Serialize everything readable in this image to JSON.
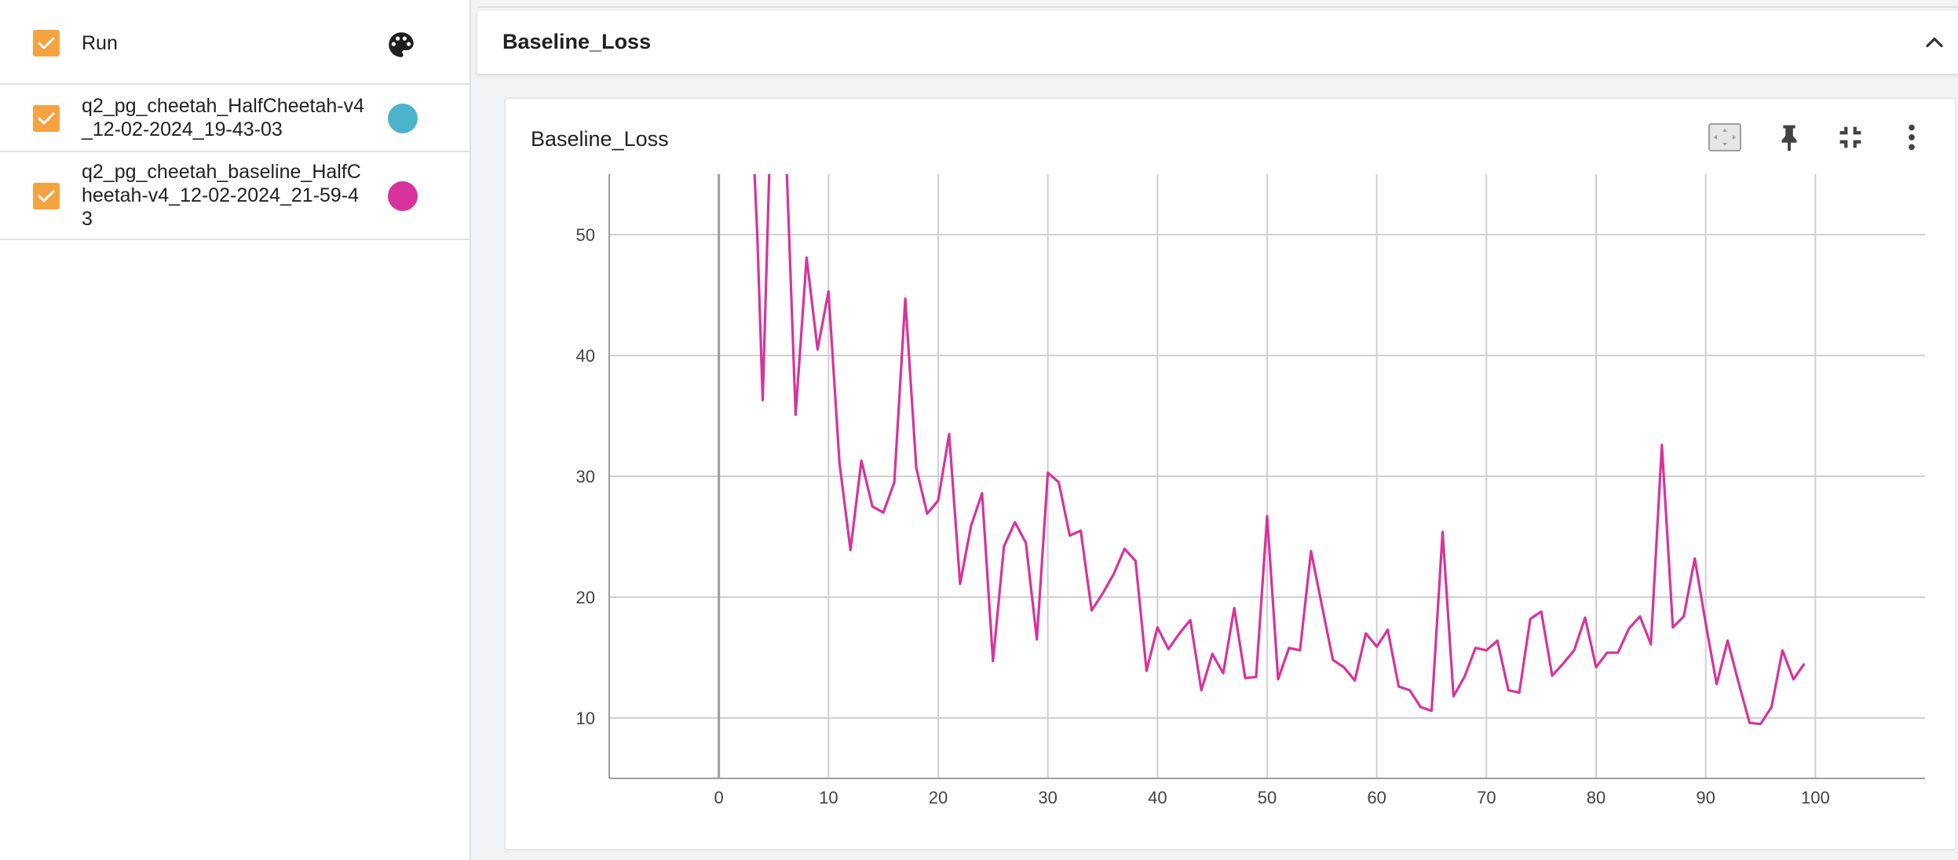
{
  "runs_panel": {
    "header_label": "Run",
    "runs": [
      {
        "name": "q2_pg_cheetah_HalfCheetah-v4_12-02-2024_19-43-03",
        "color": "#4db3cc",
        "checked": true
      },
      {
        "name": "q2_pg_cheetah_baseline_HalfCheetah-v4_12-02-2024_21-59-43",
        "color": "#d6349a",
        "checked": true
      }
    ],
    "icons": {
      "header": "palette-icon",
      "checkbox": "check-icon"
    }
  },
  "group": {
    "title": "Baseline_Loss",
    "collapse_icon": "chevron-up-icon"
  },
  "card": {
    "title": "Baseline_Loss",
    "toolbar_icons": [
      "fit-domain-icon",
      "pin-icon",
      "collapse-fullscreen-icon",
      "more-vert-icon"
    ]
  },
  "colors": {
    "accent_checkbox": "#f5a242",
    "series": "#d6349a",
    "grid": "#d0d0d0",
    "axis_text": "#424242"
  },
  "chart_data": {
    "type": "line",
    "title": "",
    "xlabel": "",
    "ylabel": "",
    "xlim": [
      -10,
      110
    ],
    "ylim": [
      5,
      55
    ],
    "x_ticks": [
      0,
      10,
      20,
      30,
      40,
      50,
      60,
      70,
      80,
      90,
      100
    ],
    "y_ticks": [
      10,
      20,
      30,
      40,
      50
    ],
    "grid": true,
    "series": [
      {
        "name": "q2_pg_cheetah_baseline_HalfCheetah-v4_12-02-2024_21-59-43",
        "color": "#d6349a",
        "x": [
          3,
          3.5,
          4,
          5,
          6,
          7,
          8,
          9,
          10,
          11,
          12,
          13,
          14,
          15,
          16,
          17,
          18,
          19,
          20,
          21,
          22,
          23,
          24,
          25,
          26,
          27,
          28,
          29,
          30,
          31,
          32,
          33,
          34,
          35,
          36,
          37,
          38,
          39,
          40,
          41,
          42,
          43,
          44,
          45,
          46,
          47,
          48,
          49,
          50,
          51,
          52,
          53,
          54,
          55,
          56,
          57,
          58,
          59,
          60,
          61,
          62,
          63,
          64,
          65,
          66,
          67,
          68,
          69,
          70,
          71,
          72,
          73,
          74,
          75,
          76,
          77,
          78,
          79,
          80,
          81,
          82,
          83,
          84,
          85,
          86,
          87,
          88,
          89,
          90,
          91,
          92,
          93,
          94,
          95,
          96,
          97,
          98,
          99
        ],
        "values": [
          60,
          50,
          36.3,
          68,
          60,
          35.1,
          48.1,
          40.5,
          45.3,
          31.1,
          23.9,
          31.3,
          27.5,
          27,
          29.5,
          44.7,
          30.7,
          26.9,
          28,
          33.5,
          21.1,
          25.9,
          28.6,
          14.7,
          24.2,
          26.2,
          24.5,
          16.5,
          30.3,
          29.5,
          25.1,
          25.5,
          18.9,
          20.3,
          21.9,
          24,
          23,
          13.9,
          17.5,
          15.7,
          17,
          18.1,
          12.3,
          15.3,
          13.7,
          19.1,
          13.3,
          13.4,
          26.7,
          13.2,
          15.8,
          15.6,
          23.8,
          19.3,
          14.8,
          14.2,
          13.1,
          17,
          15.9,
          17.3,
          12.6,
          12.3,
          10.9,
          10.6,
          25.4,
          11.8,
          13.4,
          15.8,
          15.6,
          16.4,
          12.3,
          12.1,
          18.2,
          18.8,
          13.5,
          14.5,
          15.6,
          18.3,
          14.2,
          15.4,
          15.4,
          17.4,
          18.4,
          16.1,
          32.6,
          17.5,
          18.4,
          23.2,
          17.8,
          12.8,
          16.4,
          12.9,
          9.6,
          9.5,
          10.9,
          15.6,
          13.2,
          14.5
        ]
      }
    ]
  }
}
